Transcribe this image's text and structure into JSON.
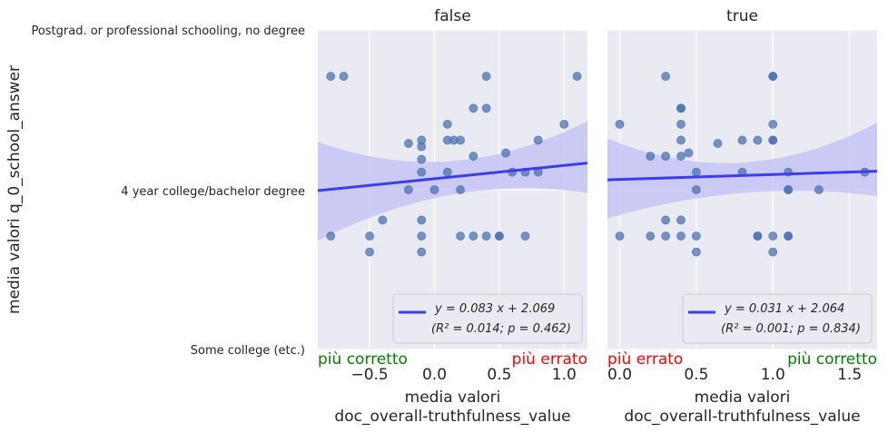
{
  "figure": {
    "ylabel": "media valori q_0_school_answer",
    "ytick_labels": [
      "Postgrad. or professional schooling, no degree",
      "4 year college/bachelor degree",
      "Some college (etc.)"
    ],
    "colors": {
      "background": "#eaeaf2",
      "points": "#4c72b0",
      "line": "#3c3cf0",
      "band": "#c4c4f4",
      "grid": "#ffffff",
      "correct": "#008000",
      "wrong": "#ff0000"
    }
  },
  "chart_data": [
    {
      "type": "scatter",
      "title": "false",
      "xlabel": "media valori\ndoc_overall-truthfulness_value",
      "xlim": [
        -0.9,
        1.18
      ],
      "ylim": [
        1.0,
        3.0
      ],
      "xticks": [
        "−0.5",
        "0.0",
        "0.5",
        "1.0"
      ],
      "annotation_left": "più corretto",
      "annotation_right": "più errato",
      "fit": {
        "slope": 0.083,
        "intercept": 2.069,
        "equation": "y = 0.083 x + 2.069",
        "stats": "(R² = 0.014; p = 0.462)"
      },
      "ci": {
        "left": [
          1.68,
          2.3
        ],
        "mid": [
          1.97,
          2.18
        ],
        "right": [
          1.98,
          2.43
        ]
      },
      "points": [
        {
          "x": -0.8,
          "y": 2.71
        },
        {
          "x": -0.7,
          "y": 2.71
        },
        {
          "x": -0.8,
          "y": 1.71
        },
        {
          "x": -0.5,
          "y": 1.71
        },
        {
          "x": -0.5,
          "y": 1.61
        },
        {
          "x": -0.4,
          "y": 1.81
        },
        {
          "x": -0.2,
          "y": 2.29
        },
        {
          "x": -0.2,
          "y": 2.0
        },
        {
          "x": -0.1,
          "y": 2.31
        },
        {
          "x": -0.1,
          "y": 2.27
        },
        {
          "x": -0.1,
          "y": 2.19
        },
        {
          "x": -0.1,
          "y": 2.11
        },
        {
          "x": -0.1,
          "y": 1.81
        },
        {
          "x": -0.1,
          "y": 1.71
        },
        {
          "x": -0.1,
          "y": 1.61
        },
        {
          "x": 0.0,
          "y": 2.0
        },
        {
          "x": 0.1,
          "y": 2.41
        },
        {
          "x": 0.1,
          "y": 2.31
        },
        {
          "x": 0.15,
          "y": 2.31
        },
        {
          "x": 0.1,
          "y": 2.11
        },
        {
          "x": 0.2,
          "y": 2.31
        },
        {
          "x": 0.2,
          "y": 2.0
        },
        {
          "x": 0.2,
          "y": 1.71
        },
        {
          "x": 0.3,
          "y": 2.51
        },
        {
          "x": 0.3,
          "y": 2.21
        },
        {
          "x": 0.3,
          "y": 1.71
        },
        {
          "x": 0.4,
          "y": 2.71
        },
        {
          "x": 0.4,
          "y": 2.51
        },
        {
          "x": 0.4,
          "y": 1.71
        },
        {
          "x": 0.5,
          "y": 1.71
        },
        {
          "x": 0.5,
          "y": 1.71
        },
        {
          "x": 0.55,
          "y": 2.23
        },
        {
          "x": 0.6,
          "y": 2.11
        },
        {
          "x": 0.7,
          "y": 2.11
        },
        {
          "x": 0.7,
          "y": 1.71
        },
        {
          "x": 0.8,
          "y": 2.31
        },
        {
          "x": 0.8,
          "y": 2.11
        },
        {
          "x": 1.0,
          "y": 2.41
        },
        {
          "x": 1.1,
          "y": 2.71
        }
      ]
    },
    {
      "type": "scatter",
      "title": "true",
      "xlabel": "media valori\ndoc_overall-truthfulness_value",
      "xlim": [
        -0.08,
        1.68
      ],
      "ylim": [
        1.0,
        3.0
      ],
      "xticks": [
        "0.0",
        "0.5",
        "1.0",
        "1.5"
      ],
      "annotation_left": "più errato",
      "annotation_right": "più corretto",
      "fit": {
        "slope": 0.031,
        "intercept": 2.064,
        "equation": "y = 0.031 x + 2.064",
        "stats": "(R² = 0.001; p = 0.834)"
      },
      "ci": {
        "left": [
          1.82,
          2.32
        ],
        "mid": [
          1.98,
          2.17
        ],
        "right": [
          1.96,
          2.42
        ]
      },
      "points": [
        {
          "x": 0.0,
          "y": 2.41
        },
        {
          "x": 0.0,
          "y": 1.71
        },
        {
          "x": 0.2,
          "y": 2.21
        },
        {
          "x": 0.2,
          "y": 1.71
        },
        {
          "x": 0.3,
          "y": 2.71
        },
        {
          "x": 0.3,
          "y": 2.21
        },
        {
          "x": 0.3,
          "y": 1.81
        },
        {
          "x": 0.3,
          "y": 1.71
        },
        {
          "x": 0.4,
          "y": 2.51
        },
        {
          "x": 0.4,
          "y": 2.51
        },
        {
          "x": 0.4,
          "y": 2.41
        },
        {
          "x": 0.4,
          "y": 2.31
        },
        {
          "x": 0.4,
          "y": 2.21
        },
        {
          "x": 0.4,
          "y": 1.81
        },
        {
          "x": 0.4,
          "y": 1.71
        },
        {
          "x": 0.45,
          "y": 2.23
        },
        {
          "x": 0.5,
          "y": 2.11
        },
        {
          "x": 0.5,
          "y": 2.0
        },
        {
          "x": 0.5,
          "y": 1.71
        },
        {
          "x": 0.5,
          "y": 1.61
        },
        {
          "x": 0.64,
          "y": 2.29
        },
        {
          "x": 0.8,
          "y": 2.31
        },
        {
          "x": 0.8,
          "y": 2.11
        },
        {
          "x": 0.9,
          "y": 2.31
        },
        {
          "x": 0.9,
          "y": 1.71
        },
        {
          "x": 0.9,
          "y": 1.71
        },
        {
          "x": 1.0,
          "y": 2.71
        },
        {
          "x": 1.0,
          "y": 2.71
        },
        {
          "x": 1.0,
          "y": 2.41
        },
        {
          "x": 1.0,
          "y": 2.31
        },
        {
          "x": 1.0,
          "y": 2.31
        },
        {
          "x": 1.0,
          "y": 1.71
        },
        {
          "x": 1.0,
          "y": 1.61
        },
        {
          "x": 1.1,
          "y": 2.11
        },
        {
          "x": 1.1,
          "y": 2.0
        },
        {
          "x": 1.1,
          "y": 2.0
        },
        {
          "x": 1.1,
          "y": 1.71
        },
        {
          "x": 1.1,
          "y": 1.71
        },
        {
          "x": 1.3,
          "y": 2.0
        },
        {
          "x": 1.6,
          "y": 2.11
        }
      ]
    }
  ]
}
